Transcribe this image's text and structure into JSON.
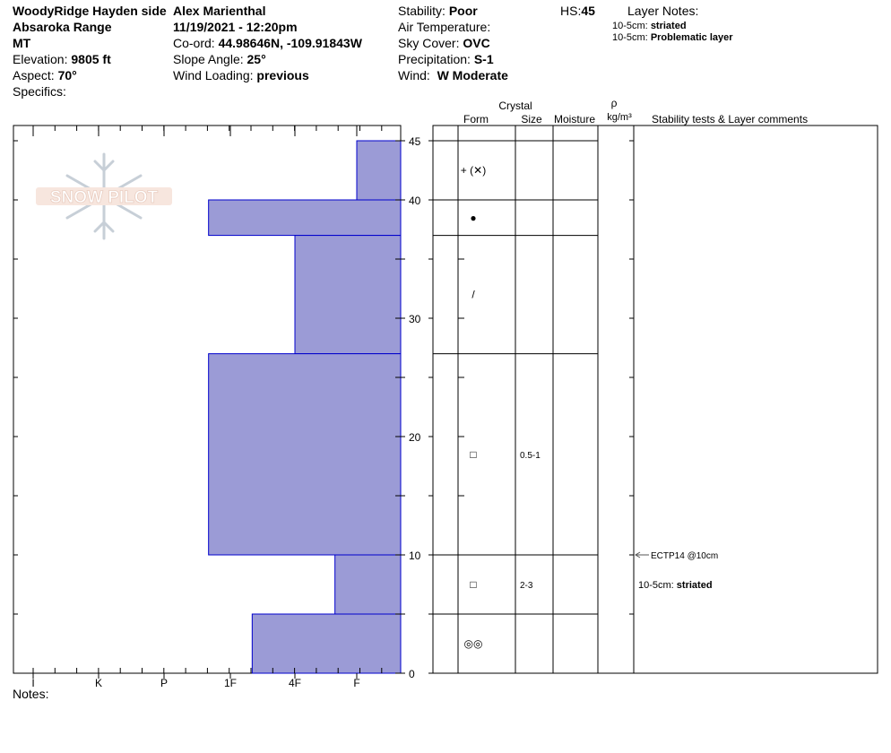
{
  "header": {
    "location": "WoodyRidge Hayden side",
    "observer": "Alex Marienthal",
    "range": "Absaroka Range",
    "datetime": "11/19/2021 - 12:20pm",
    "state": "MT",
    "coord_label": "Co-ord:",
    "coord_value": "44.98646N, -109.91843W",
    "elevation_label": "Elevation:",
    "elevation_value": "9805 ft",
    "slope_label": "Slope Angle:",
    "slope_value": "25°",
    "aspect_label": "Aspect:",
    "aspect_value": "70°",
    "wind_loading_label": "Wind Loading:",
    "wind_loading_value": "previous",
    "specifics_label": "Specifics:",
    "stability_label": "Stability:",
    "stability_value": "Poor",
    "air_temp_label": "Air Temperature:",
    "sky_label": "Sky Cover:",
    "sky_value": "OVC",
    "precip_label": "Precipitation:",
    "precip_value": "S-1",
    "wind_label": "Wind:",
    "wind_value": "W Moderate",
    "hs_label": "HS:",
    "hs_value": "45",
    "layer_notes_label": "Layer Notes:",
    "layer_notes": [
      {
        "range": "10-5cm:",
        "text": "striated"
      },
      {
        "range": "10-5cm:",
        "text": "Problematic layer"
      }
    ]
  },
  "logo_text": "SNOW PILOT",
  "columns": {
    "crystal": "Crystal",
    "form": "Form",
    "size": "Size",
    "moisture": "Moisture",
    "rho": "ρ",
    "density_unit": "kg/m³",
    "comments": "Stability tests & Layer comments"
  },
  "notes_label": "Notes:",
  "colors": {
    "hardness_fill": "#9b9bd6",
    "hardness_stroke": "#0000cc",
    "test_arrow": "#555555"
  },
  "chart_data": {
    "type": "bar",
    "y_axis": {
      "range": [
        0,
        45
      ],
      "ticks": [
        0,
        10,
        20,
        30,
        40,
        45
      ]
    },
    "x_axis": {
      "categories": [
        "I",
        "K",
        "P",
        "1F",
        "4F",
        "F"
      ],
      "reversed": true
    },
    "layers": [
      {
        "top": 45,
        "bottom": 40,
        "hardness": "F",
        "form": "+ (✕)",
        "form_icon": "precip-particles-icon",
        "size": ""
      },
      {
        "top": 40,
        "bottom": 37,
        "hardness": "1F+",
        "form": "●",
        "form_icon": "melt-form-icon",
        "size": ""
      },
      {
        "top": 37,
        "bottom": 27,
        "hardness": "4F",
        "form": "/",
        "form_icon": "decomposing-icon",
        "size": ""
      },
      {
        "top": 27,
        "bottom": 10,
        "hardness": "1F+",
        "form": "□",
        "form_icon": "faceted-icon",
        "size": "0.5-1"
      },
      {
        "top": 10,
        "bottom": 5,
        "hardness": "F+",
        "form": "□",
        "form_icon": "faceted-icon",
        "size": "2-3"
      },
      {
        "top": 5,
        "bottom": 0,
        "hardness": "1F-",
        "form": "◎◎",
        "form_icon": "melt-freeze-icon",
        "size": ""
      }
    ],
    "tests": [
      {
        "depth": 10,
        "label": "ECTP14 @10cm"
      }
    ],
    "layer_comments": [
      {
        "depth": 7.5,
        "range": "10-5cm:",
        "text": "striated"
      }
    ]
  }
}
